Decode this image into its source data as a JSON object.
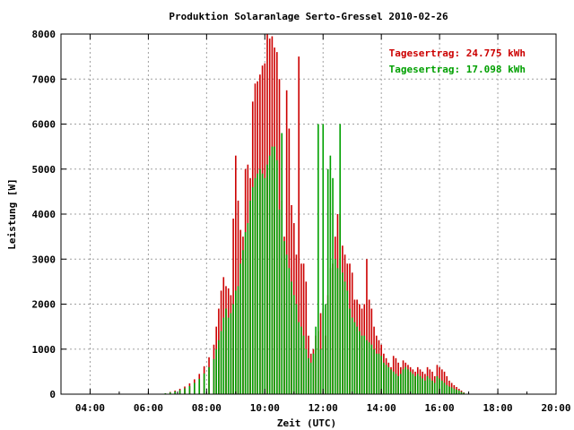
{
  "chart_data": {
    "type": "bar",
    "title": "Produktion Solaranlage Serto-Gressel 2010-02-26",
    "xlabel": "Zeit (UTC)",
    "ylabel": "Leistung [W]",
    "xlim": [
      "03:00",
      "20:00"
    ],
    "ylim": [
      0,
      8000
    ],
    "x_ticks": [
      "04:00",
      "06:00",
      "08:00",
      "10:00",
      "12:00",
      "14:00",
      "16:00",
      "18:00",
      "20:00"
    ],
    "y_ticks": [
      "0",
      "1000",
      "2000",
      "3000",
      "4000",
      "5000",
      "6000",
      "7000",
      "8000"
    ],
    "grid": true,
    "legend_position": "top-right",
    "series": [
      {
        "name": "Tagesertrag: 24.775 kWh",
        "color": "#cc0000",
        "points": [
          [
            "06:35",
            20
          ],
          [
            "06:45",
            50
          ],
          [
            "06:55",
            80
          ],
          [
            "07:05",
            120
          ],
          [
            "07:15",
            170
          ],
          [
            "07:25",
            240
          ],
          [
            "07:35",
            330
          ],
          [
            "07:45",
            450
          ],
          [
            "07:55",
            620
          ],
          [
            "08:05",
            820
          ],
          [
            "08:15",
            1100
          ],
          [
            "08:20",
            1500
          ],
          [
            "08:25",
            1900
          ],
          [
            "08:30",
            2300
          ],
          [
            "08:35",
            2600
          ],
          [
            "08:40",
            2400
          ],
          [
            "08:45",
            2350
          ],
          [
            "08:50",
            2200
          ],
          [
            "08:55",
            3900
          ],
          [
            "09:00",
            5300
          ],
          [
            "09:05",
            4300
          ],
          [
            "09:10",
            3650
          ],
          [
            "09:15",
            3500
          ],
          [
            "09:20",
            5000
          ],
          [
            "09:25",
            5100
          ],
          [
            "09:30",
            4800
          ],
          [
            "09:35",
            6500
          ],
          [
            "09:40",
            6900
          ],
          [
            "09:45",
            6950
          ],
          [
            "09:50",
            7100
          ],
          [
            "09:55",
            7300
          ],
          [
            "10:00",
            7350
          ],
          [
            "10:05",
            8000
          ],
          [
            "10:10",
            7900
          ],
          [
            "10:15",
            7950
          ],
          [
            "10:20",
            7700
          ],
          [
            "10:25",
            7600
          ],
          [
            "10:30",
            7000
          ],
          [
            "10:35",
            4300
          ],
          [
            "10:40",
            3500
          ],
          [
            "10:45",
            6750
          ],
          [
            "10:50",
            5900
          ],
          [
            "10:55",
            4200
          ],
          [
            "11:00",
            3800
          ],
          [
            "11:05",
            3100
          ],
          [
            "11:10",
            7500
          ],
          [
            "11:15",
            2900
          ],
          [
            "11:20",
            2900
          ],
          [
            "11:25",
            2500
          ],
          [
            "11:30",
            1300
          ],
          [
            "11:35",
            900
          ],
          [
            "11:40",
            1000
          ],
          [
            "11:45",
            1300
          ],
          [
            "11:50",
            1400
          ],
          [
            "11:55",
            1800
          ],
          [
            "12:00",
            1900
          ],
          [
            "12:05",
            1300
          ],
          [
            "12:10",
            2200
          ],
          [
            "12:15",
            2800
          ],
          [
            "12:20",
            2900
          ],
          [
            "12:25",
            3500
          ],
          [
            "12:30",
            4000
          ],
          [
            "12:35",
            4000
          ],
          [
            "12:40",
            3300
          ],
          [
            "12:45",
            3100
          ],
          [
            "12:50",
            2900
          ],
          [
            "12:55",
            2900
          ],
          [
            "13:00",
            2700
          ],
          [
            "13:05",
            2100
          ],
          [
            "13:10",
            2100
          ],
          [
            "13:15",
            2000
          ],
          [
            "13:20",
            1900
          ],
          [
            "13:25",
            2000
          ],
          [
            "13:30",
            3000
          ],
          [
            "13:35",
            2100
          ],
          [
            "13:40",
            1900
          ],
          [
            "13:45",
            1500
          ],
          [
            "13:50",
            1300
          ],
          [
            "13:55",
            1200
          ],
          [
            "14:00",
            1100
          ],
          [
            "14:05",
            900
          ],
          [
            "14:10",
            800
          ],
          [
            "14:15",
            700
          ],
          [
            "14:20",
            600
          ],
          [
            "14:25",
            850
          ],
          [
            "14:30",
            800
          ],
          [
            "14:35",
            700
          ],
          [
            "14:40",
            600
          ],
          [
            "14:45",
            750
          ],
          [
            "14:50",
            700
          ],
          [
            "14:55",
            650
          ],
          [
            "15:00",
            600
          ],
          [
            "15:05",
            550
          ],
          [
            "15:10",
            500
          ],
          [
            "15:15",
            600
          ],
          [
            "15:20",
            550
          ],
          [
            "15:25",
            500
          ],
          [
            "15:30",
            450
          ],
          [
            "15:35",
            600
          ],
          [
            "15:40",
            550
          ],
          [
            "15:45",
            500
          ],
          [
            "15:50",
            400
          ],
          [
            "15:55",
            650
          ],
          [
            "16:00",
            600
          ],
          [
            "16:05",
            550
          ],
          [
            "16:10",
            500
          ],
          [
            "16:15",
            400
          ],
          [
            "16:20",
            300
          ],
          [
            "16:25",
            250
          ],
          [
            "16:30",
            200
          ],
          [
            "16:35",
            160
          ],
          [
            "16:40",
            120
          ],
          [
            "16:45",
            80
          ],
          [
            "16:50",
            40
          ]
        ]
      },
      {
        "name": "Tagesertrag: 17.098 kWh",
        "color": "#00a000",
        "points": [
          [
            "06:35",
            20
          ],
          [
            "06:45",
            40
          ],
          [
            "06:55",
            60
          ],
          [
            "07:05",
            90
          ],
          [
            "07:15",
            130
          ],
          [
            "07:25",
            180
          ],
          [
            "07:35",
            250
          ],
          [
            "07:45",
            340
          ],
          [
            "07:55",
            460
          ],
          [
            "08:05",
            600
          ],
          [
            "08:15",
            780
          ],
          [
            "08:20",
            1000
          ],
          [
            "08:25",
            1200
          ],
          [
            "08:30",
            1400
          ],
          [
            "08:35",
            1700
          ],
          [
            "08:40",
            1900
          ],
          [
            "08:45",
            1700
          ],
          [
            "08:50",
            1800
          ],
          [
            "08:55",
            2000
          ],
          [
            "09:00",
            2300
          ],
          [
            "09:05",
            2400
          ],
          [
            "09:10",
            2900
          ],
          [
            "09:15",
            3200
          ],
          [
            "09:20",
            3600
          ],
          [
            "09:25",
            3800
          ],
          [
            "09:30",
            4300
          ],
          [
            "09:35",
            4600
          ],
          [
            "09:40",
            4800
          ],
          [
            "09:45",
            4900
          ],
          [
            "09:50",
            5000
          ],
          [
            "09:55",
            4900
          ],
          [
            "10:00",
            4800
          ],
          [
            "10:05",
            5100
          ],
          [
            "10:10",
            5300
          ],
          [
            "10:15",
            5500
          ],
          [
            "10:20",
            5500
          ],
          [
            "10:25",
            5200
          ],
          [
            "10:30",
            4100
          ],
          [
            "10:35",
            5800
          ],
          [
            "10:40",
            3400
          ],
          [
            "10:45",
            3100
          ],
          [
            "10:50",
            2800
          ],
          [
            "10:55",
            2500
          ],
          [
            "11:00",
            2200
          ],
          [
            "11:05",
            2000
          ],
          [
            "11:10",
            1600
          ],
          [
            "11:15",
            1500
          ],
          [
            "11:20",
            1300
          ],
          [
            "11:25",
            1000
          ],
          [
            "11:30",
            800
          ],
          [
            "11:35",
            700
          ],
          [
            "11:40",
            900
          ],
          [
            "11:45",
            1500
          ],
          [
            "11:50",
            6000
          ],
          [
            "11:55",
            1000
          ],
          [
            "12:00",
            6000
          ],
          [
            "12:05",
            2000
          ],
          [
            "12:10",
            5000
          ],
          [
            "12:15",
            5300
          ],
          [
            "12:20",
            4800
          ],
          [
            "12:25",
            3000
          ],
          [
            "12:30",
            2800
          ],
          [
            "12:35",
            6000
          ],
          [
            "12:40",
            2700
          ],
          [
            "12:45",
            2500
          ],
          [
            "12:50",
            2300
          ],
          [
            "12:55",
            1900
          ],
          [
            "13:00",
            1700
          ],
          [
            "13:05",
            1600
          ],
          [
            "13:10",
            1500
          ],
          [
            "13:15",
            1400
          ],
          [
            "13:20",
            1300
          ],
          [
            "13:25",
            1300
          ],
          [
            "13:30",
            1200
          ],
          [
            "13:35",
            1150
          ],
          [
            "13:40",
            1100
          ],
          [
            "13:45",
            1000
          ],
          [
            "13:50",
            900
          ],
          [
            "13:55",
            900
          ],
          [
            "14:00",
            850
          ],
          [
            "14:05",
            700
          ],
          [
            "14:10",
            650
          ],
          [
            "14:15",
            600
          ],
          [
            "14:20",
            550
          ],
          [
            "14:25",
            500
          ],
          [
            "14:30",
            450
          ],
          [
            "14:35",
            400
          ],
          [
            "14:40",
            450
          ],
          [
            "14:45",
            550
          ],
          [
            "14:50",
            600
          ],
          [
            "14:55",
            550
          ],
          [
            "15:00",
            500
          ],
          [
            "15:05",
            450
          ],
          [
            "15:10",
            400
          ],
          [
            "15:15",
            450
          ],
          [
            "15:20",
            400
          ],
          [
            "15:25",
            350
          ],
          [
            "15:30",
            300
          ],
          [
            "15:35",
            400
          ],
          [
            "15:40",
            350
          ],
          [
            "15:45",
            300
          ],
          [
            "15:50",
            250
          ],
          [
            "15:55",
            400
          ],
          [
            "16:00",
            350
          ],
          [
            "16:05",
            300
          ],
          [
            "16:10",
            250
          ],
          [
            "16:15",
            200
          ],
          [
            "16:20",
            170
          ],
          [
            "16:25",
            150
          ],
          [
            "16:30",
            120
          ],
          [
            "16:35",
            100
          ],
          [
            "16:40",
            80
          ],
          [
            "16:45",
            50
          ],
          [
            "16:50",
            30
          ]
        ]
      }
    ]
  }
}
